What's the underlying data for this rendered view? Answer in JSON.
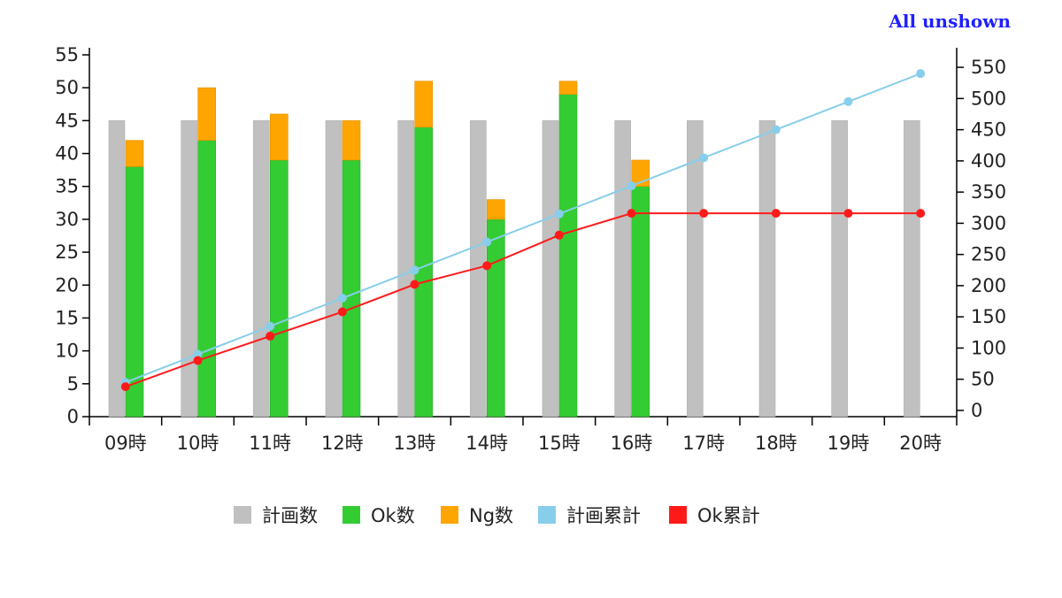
{
  "controls": {
    "toggle_all_label": "All unshown"
  },
  "colors": {
    "plan": "#c0c0c0",
    "ok": "#33cc33",
    "ng": "#ffa500",
    "plan_cumulative": "#87ceeb",
    "ok_cumulative": "#ff1a1a"
  },
  "chart_data": {
    "type": "bar",
    "categories": [
      "09時",
      "10時",
      "11時",
      "12時",
      "13時",
      "14時",
      "15時",
      "16時",
      "17時",
      "18時",
      "19時",
      "20時"
    ],
    "series": [
      {
        "name": "計画数",
        "kind": "bar",
        "axis": "left",
        "values": [
          45,
          45,
          45,
          45,
          45,
          45,
          45,
          45,
          45,
          45,
          45,
          45
        ]
      },
      {
        "name": "Ok数",
        "kind": "bar-stacked",
        "axis": "left",
        "values": [
          38,
          42,
          39,
          39,
          44,
          30,
          49,
          35,
          null,
          null,
          null,
          null
        ]
      },
      {
        "name": "Ng数",
        "kind": "bar-stacked",
        "axis": "left",
        "values": [
          4,
          8,
          7,
          6,
          7,
          3,
          2,
          4,
          null,
          null,
          null,
          null
        ]
      },
      {
        "name": "計画累計",
        "kind": "line",
        "axis": "right",
        "values": [
          45,
          90,
          135,
          180,
          225,
          270,
          315,
          360,
          405,
          450,
          495,
          540
        ]
      },
      {
        "name": "Ok累計",
        "kind": "line",
        "axis": "right",
        "values": [
          38,
          80,
          119,
          158,
          202,
          232,
          281,
          316,
          316,
          316,
          316,
          316
        ]
      }
    ],
    "y_left": {
      "min": 0,
      "max": 55,
      "ticks": [
        0,
        5,
        10,
        15,
        20,
        25,
        30,
        35,
        40,
        45,
        50,
        55
      ]
    },
    "y_right": {
      "min": -10,
      "max": 570,
      "ticks": [
        0,
        50,
        100,
        150,
        200,
        250,
        300,
        350,
        400,
        450,
        500,
        550
      ]
    },
    "legend_position": "bottom",
    "grid": false
  }
}
